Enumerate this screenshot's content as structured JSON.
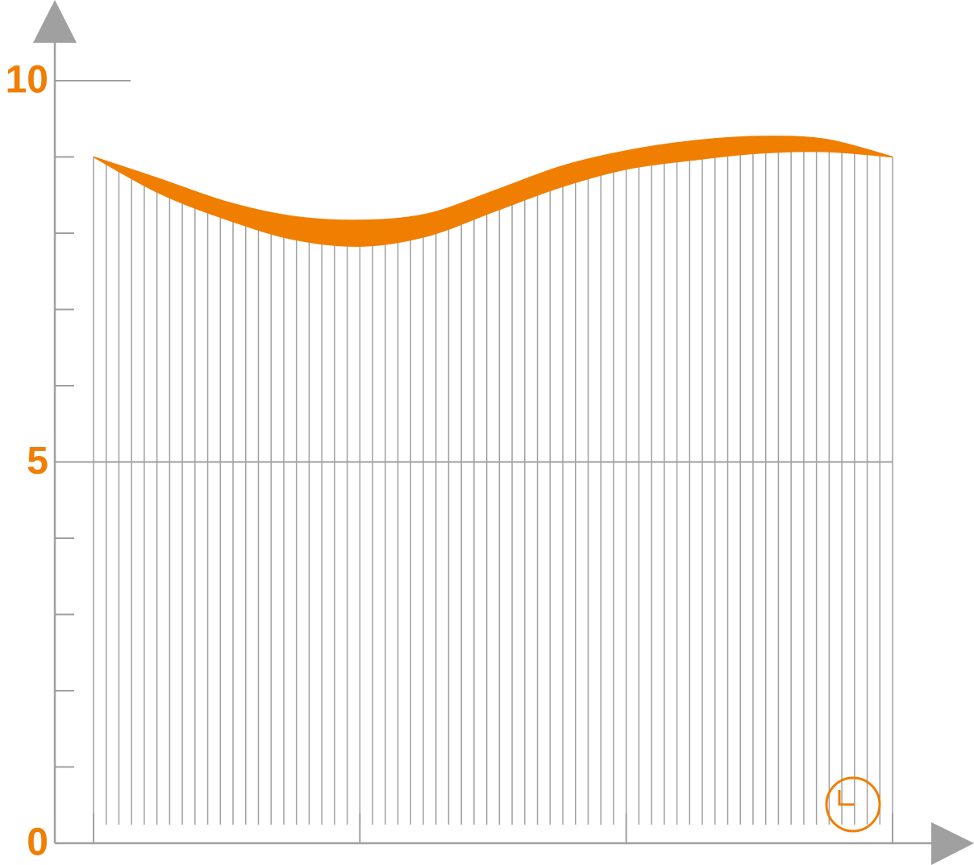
{
  "chart_data": {
    "type": "band",
    "categories": [
      null,
      null,
      null,
      null,
      null,
      null,
      null,
      null,
      null,
      null,
      null,
      null,
      null
    ],
    "series": [
      {
        "color": "#f07e00",
        "values": [
          9.0,
          8.71,
          8.41,
          8.22,
          8.17,
          8.25,
          8.55,
          8.87,
          9.08,
          9.21,
          9.27,
          9.23,
          9.0
        ]
      },
      {
        "color": "#f07e00",
        "values": [
          9.0,
          8.52,
          8.18,
          7.92,
          7.83,
          7.96,
          8.28,
          8.6,
          8.84,
          8.96,
          9.05,
          9.07,
          9.0
        ]
      }
    ],
    "ylim": [
      0,
      10
    ],
    "yticks": [
      0,
      5,
      10
    ]
  }
}
